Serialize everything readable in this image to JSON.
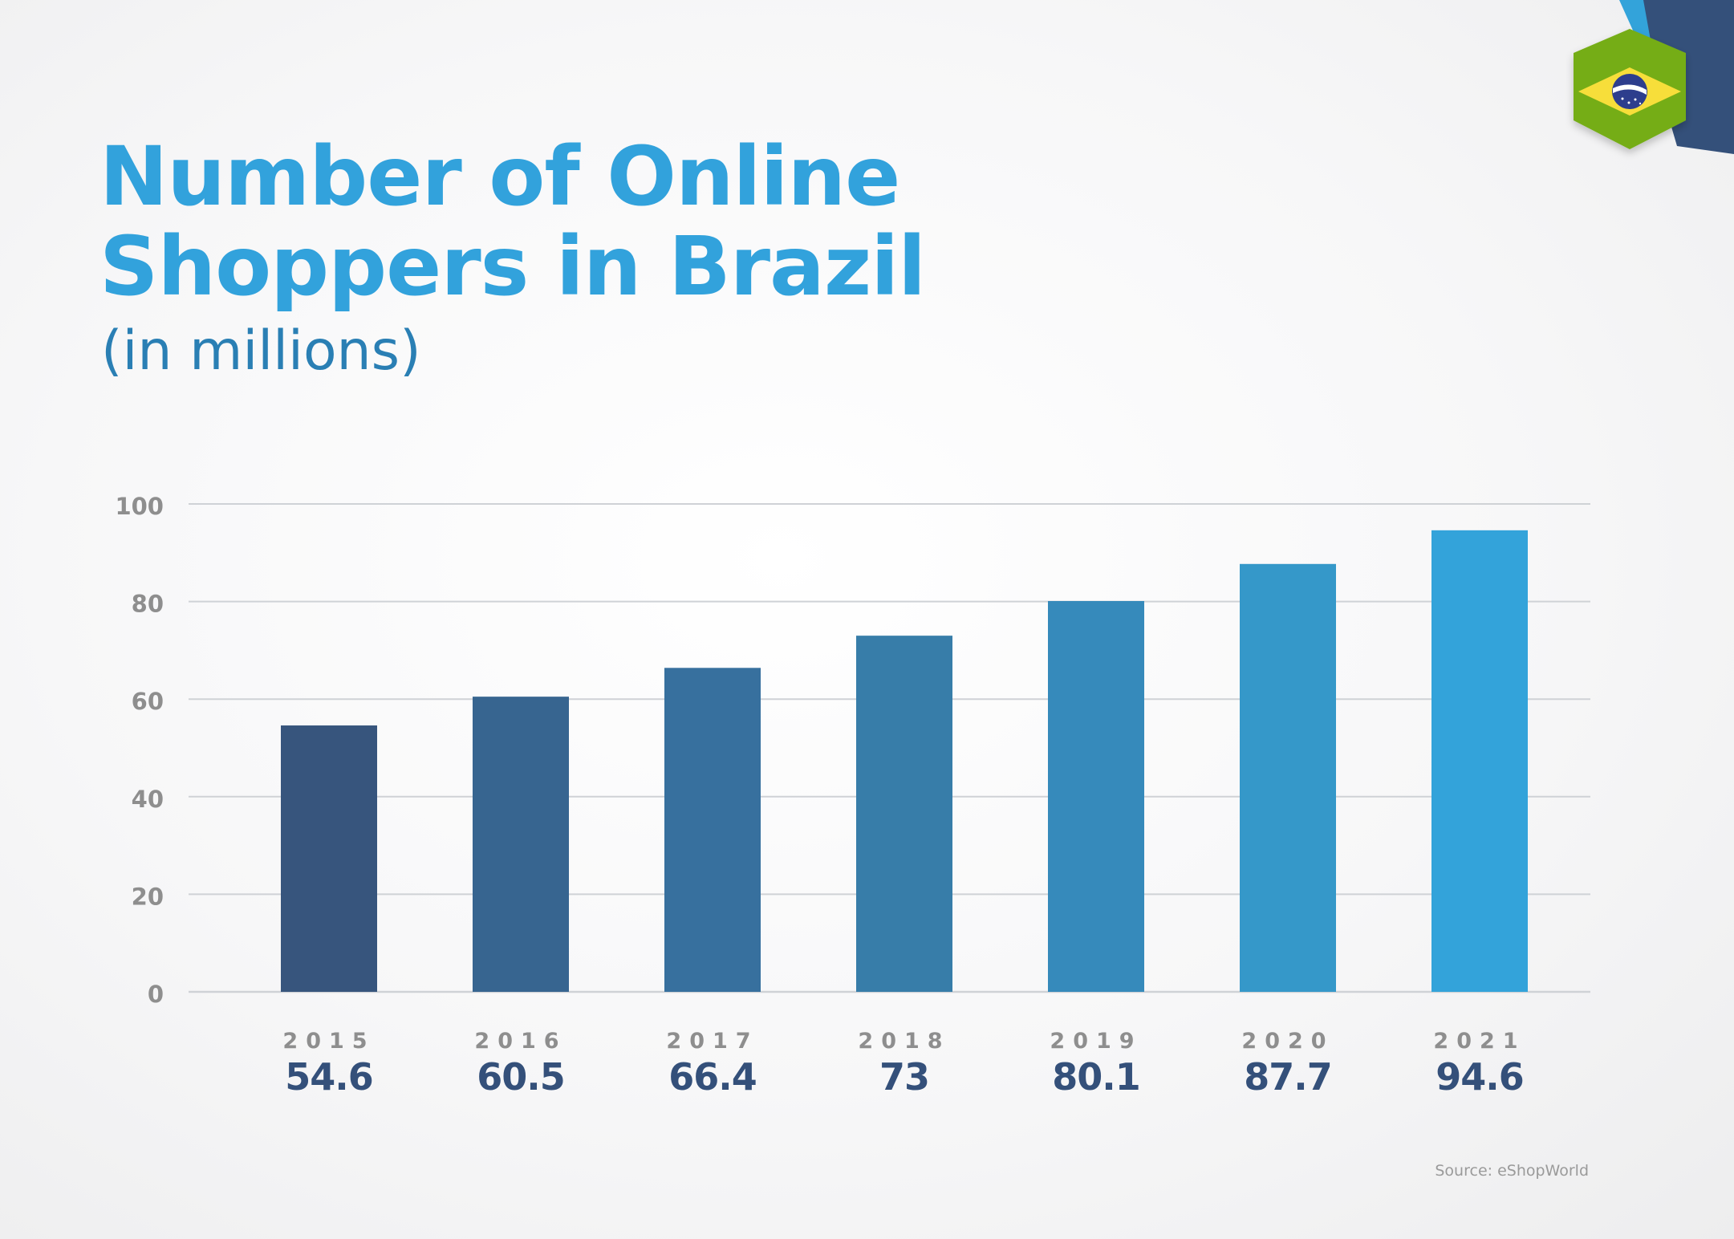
{
  "title_lines": [
    "Number of Online",
    "Shoppers in Brazil"
  ],
  "subtitle": "(in millions)",
  "source": "Source: eShopWorld",
  "badge_icon": "brazil-flag-icon",
  "colors": {
    "title": "#32a2dc",
    "subtitle": "#2a7fb4",
    "value_labels": "#34507a",
    "gridline": "#cfd2d6"
  },
  "chart_data": {
    "type": "bar",
    "title": "Number of Online Shoppers in Brazil",
    "subtitle": "(in millions)",
    "categories": [
      "2015",
      "2016",
      "2017",
      "2018",
      "2019",
      "2020",
      "2021"
    ],
    "values": [
      54.6,
      60.5,
      66.4,
      73,
      80.1,
      87.7,
      94.6
    ],
    "value_labels": [
      "54.6",
      "60.5",
      "66.4",
      "73",
      "80.1",
      "87.7",
      "94.6"
    ],
    "bar_colors": [
      "#37557d",
      "#376590",
      "#37709e",
      "#377da9",
      "#368abb",
      "#3598c9",
      "#33a3da"
    ],
    "ylim": [
      0,
      100
    ],
    "yticks": [
      0,
      20,
      40,
      60,
      80,
      100
    ],
    "grid": true,
    "legend": "none"
  }
}
